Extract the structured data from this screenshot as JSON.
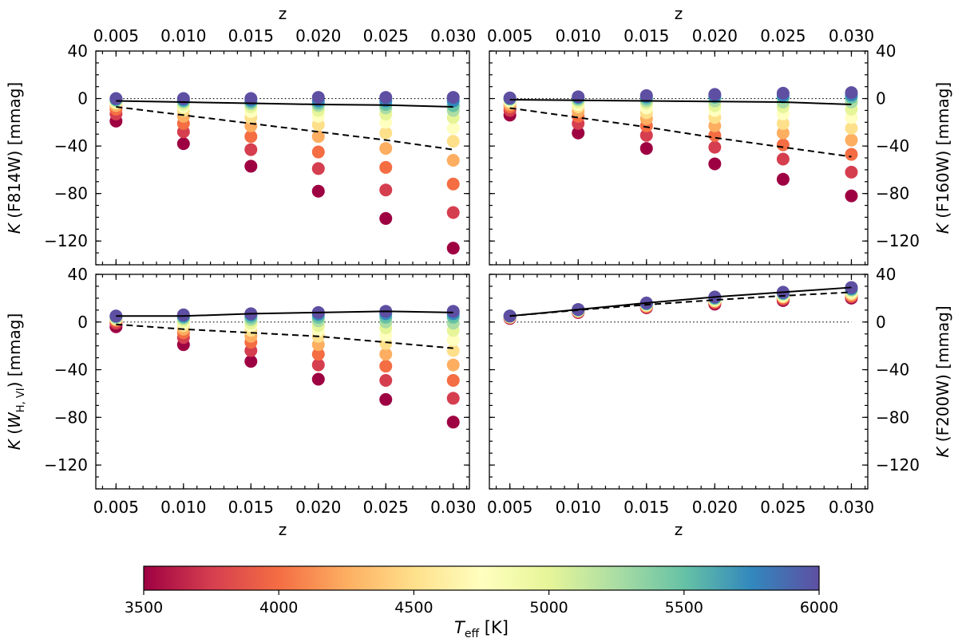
{
  "chart_data": {
    "type": "scatter",
    "x_label": "z",
    "x_ticks": [
      "0.005",
      "0.010",
      "0.015",
      "0.020",
      "0.025",
      "0.030"
    ],
    "x_values": [
      0.005,
      0.01,
      0.015,
      0.02,
      0.025,
      0.03
    ],
    "xlim": [
      0.0035,
      0.0312
    ],
    "ylim": [
      -140,
      40
    ],
    "y_ticks": [
      40,
      0,
      -40,
      -80,
      -120
    ],
    "y_tick_labels": [
      "40",
      "0",
      "−40",
      "−80",
      "−120"
    ],
    "teff_grid": [
      3500,
      3750,
      4000,
      4250,
      4500,
      4750,
      5000,
      5250,
      5500,
      5750,
      6000
    ],
    "colorbar": {
      "label_main": "T",
      "label_sub": "eff",
      "label_unit": " [K]",
      "ticks": [
        "3500",
        "4000",
        "4500",
        "5000",
        "5500",
        "6000"
      ],
      "range": [
        3500,
        6000
      ],
      "colors": [
        "#9e0142",
        "#d53e4f",
        "#f46d43",
        "#fdae61",
        "#fee08b",
        "#ffffbf",
        "#e6f598",
        "#abdda4",
        "#66c2a5",
        "#3288bd",
        "#5e4fa2"
      ]
    },
    "panels": [
      {
        "id": "f814w",
        "label_italic": "K",
        "label_rest": " (F814W) [mmag]",
        "series_values": [
          [
            -19,
            -38,
            -57,
            -78,
            -101,
            -126
          ],
          [
            -13,
            -28,
            -43,
            -59,
            -77,
            -96
          ],
          [
            -9,
            -21,
            -32,
            -45,
            -58,
            -72
          ],
          [
            -6,
            -15,
            -23,
            -32,
            -42,
            -52
          ],
          [
            -4,
            -10,
            -16,
            -22,
            -29,
            -36
          ],
          [
            -3,
            -7,
            -11,
            -15,
            -20,
            -25
          ],
          [
            -2,
            -5,
            -7,
            -10,
            -13,
            -16
          ],
          [
            -1.5,
            -3,
            -4.5,
            -6,
            -8,
            -10
          ],
          [
            -1,
            -2,
            -3,
            -4,
            -5,
            -6
          ],
          [
            -0.5,
            -1,
            -1.5,
            -2,
            -2,
            -2
          ],
          [
            0,
            0,
            0,
            1,
            1,
            1
          ]
        ],
        "solid_line": [
          -2,
          -3,
          -4,
          -5,
          -5.5,
          -7
        ],
        "dashed_line": [
          -7,
          -14,
          -21,
          -28,
          -35,
          -43
        ]
      },
      {
        "id": "f160w",
        "label_italic": "K",
        "label_rest": " (F160W) [mmag]",
        "series_values": [
          [
            -14,
            -29,
            -42,
            -55,
            -68,
            -82
          ],
          [
            -10,
            -21,
            -31,
            -41,
            -51,
            -62
          ],
          [
            -7,
            -15,
            -23,
            -31,
            -39,
            -47
          ],
          [
            -5,
            -11,
            -17,
            -23,
            -29,
            -35
          ],
          [
            -3,
            -7,
            -12,
            -16,
            -21,
            -25
          ],
          [
            -2,
            -5,
            -8,
            -10,
            -13,
            -16
          ],
          [
            -1,
            -3,
            -4,
            -6,
            -7,
            -9
          ],
          [
            -0.5,
            -1,
            -2,
            -2,
            -3,
            -3
          ],
          [
            0,
            0,
            0,
            1,
            1,
            1
          ],
          [
            0,
            1,
            1.5,
            2,
            2.5,
            3
          ],
          [
            0.5,
            1.5,
            2.5,
            3.5,
            4.5,
            5
          ]
        ],
        "solid_line": [
          -1,
          -1.5,
          -2,
          -2.5,
          -3,
          -5
        ],
        "dashed_line": [
          -8,
          -16,
          -24,
          -33,
          -41,
          -49
        ]
      },
      {
        "id": "wh",
        "label_italic": "K",
        "label_open": " (",
        "label_w": "W",
        "label_sub": "H, VI",
        "label_close": ") [mmag]",
        "series_values": [
          [
            -4,
            -19,
            -33,
            -48,
            -65,
            -84
          ],
          [
            -1,
            -13,
            -24,
            -36,
            -49,
            -64
          ],
          [
            1,
            -9,
            -17,
            -27,
            -37,
            -49
          ],
          [
            2,
            -6,
            -12,
            -19,
            -27,
            -36
          ],
          [
            2.5,
            -3,
            -7,
            -12,
            -18,
            -24
          ],
          [
            3,
            -1,
            -3,
            -7,
            -11,
            -15
          ],
          [
            3.5,
            1,
            -1,
            -3,
            -5,
            -7
          ],
          [
            4,
            3,
            2,
            1,
            0,
            -1
          ],
          [
            4.5,
            4,
            4,
            4,
            4,
            4
          ],
          [
            5,
            5,
            6,
            6.5,
            7,
            7
          ],
          [
            5,
            6,
            7,
            8,
            9,
            9
          ]
        ],
        "solid_line": [
          5,
          5,
          7,
          8,
          9,
          8
        ],
        "dashed_line": [
          -2,
          -6,
          -9,
          -12,
          -17,
          -22
        ]
      },
      {
        "id": "f200w",
        "label_italic": "K",
        "label_rest": " (F200W) [mmag]",
        "series_values": [
          [
            3,
            8,
            12,
            15,
            18,
            20
          ],
          [
            3.5,
            8.5,
            12.5,
            16,
            19,
            21
          ],
          [
            4,
            9,
            13,
            17,
            20,
            22
          ],
          [
            4,
            9,
            13.5,
            17.5,
            21,
            23
          ],
          [
            4,
            9.5,
            14,
            18,
            21.5,
            24
          ],
          [
            4.5,
            9.5,
            14.5,
            18.5,
            22,
            25
          ],
          [
            4.5,
            10,
            15,
            19,
            23,
            26
          ],
          [
            5,
            10,
            15,
            19.5,
            23.5,
            27
          ],
          [
            5,
            10,
            15.5,
            20,
            24,
            27.5
          ],
          [
            5,
            10.5,
            15.5,
            20.5,
            24.5,
            28
          ],
          [
            5,
            10.5,
            16,
            21,
            25,
            29
          ]
        ],
        "solid_line": [
          5,
          10.5,
          16,
          21,
          25,
          29
        ],
        "dashed_line": [
          5,
          10,
          14.5,
          18.5,
          22,
          25
        ]
      }
    ]
  }
}
